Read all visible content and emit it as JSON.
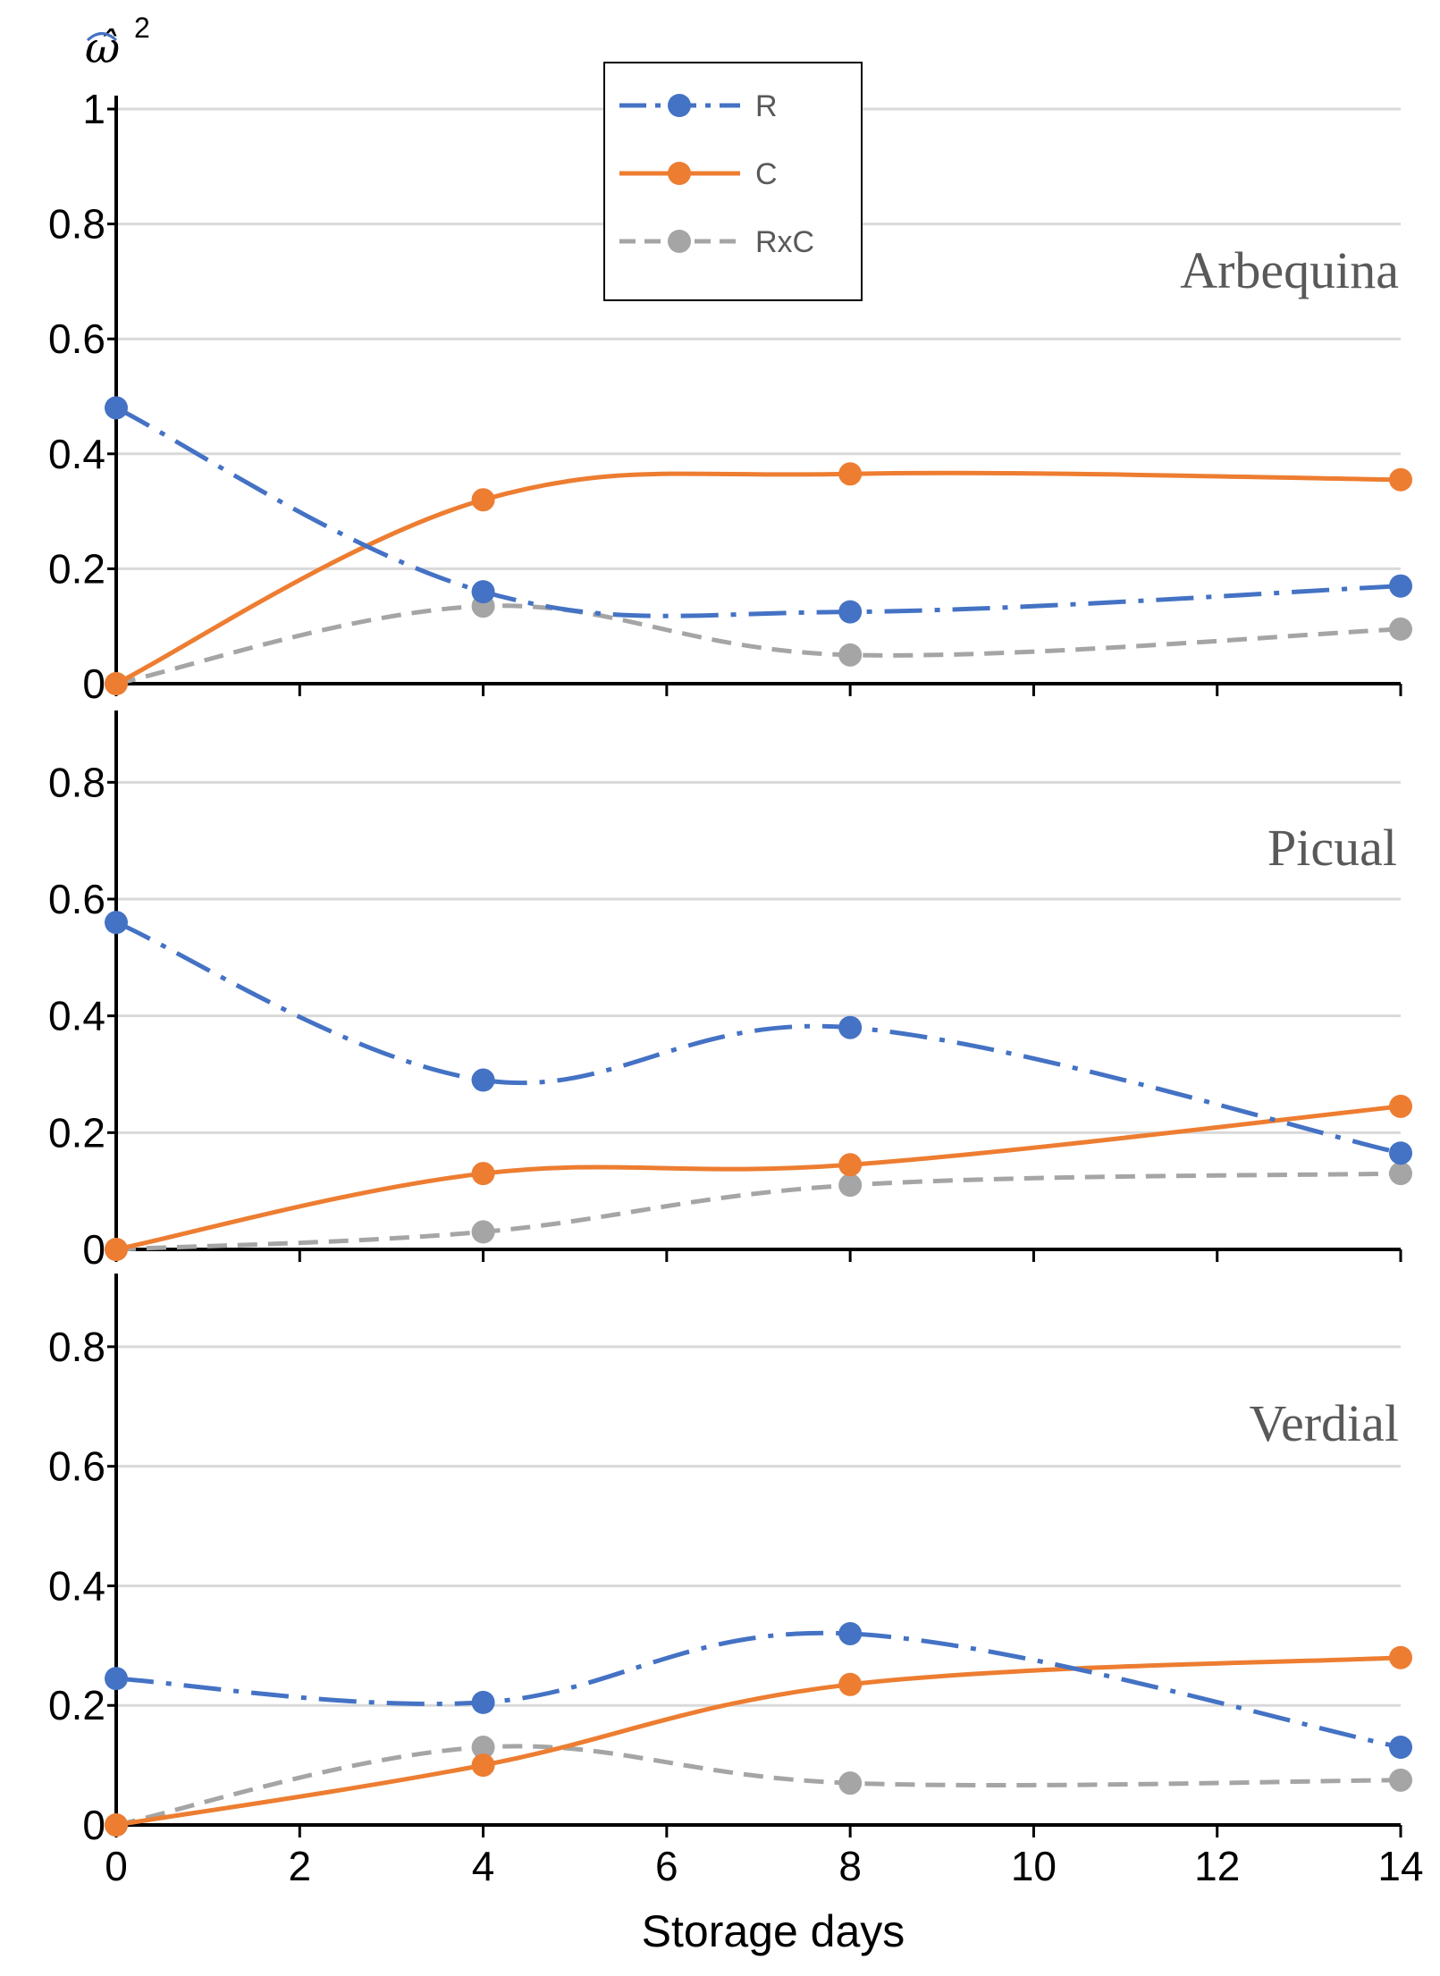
{
  "chart_data": {
    "type": "line",
    "ylabel": "ω̂",
    "ylabel_superscript": "2",
    "xlabel": "Storage days",
    "x_ticks": [
      "0",
      "2",
      "4",
      "6",
      "8",
      "10",
      "12",
      "14"
    ],
    "xlim": [
      0,
      14
    ],
    "x": [
      0,
      4,
      8,
      14
    ],
    "legend": {
      "position": "top-center",
      "entries": [
        {
          "name": "R",
          "color": "#4472C4",
          "style": "dash-dot"
        },
        {
          "name": "C",
          "color": "#ED7D31",
          "style": "solid"
        },
        {
          "name": "RxC",
          "color": "#A5A5A5",
          "style": "dashed"
        }
      ]
    },
    "panels": [
      {
        "title": "Arbequina",
        "ylim": [
          0,
          1
        ],
        "y_ticks": [
          "0",
          "0.2",
          "0.4",
          "0.6",
          "0.8",
          "1"
        ],
        "series": [
          {
            "name": "R",
            "values": [
              0.48,
              0.16,
              0.125,
              0.17
            ]
          },
          {
            "name": "C",
            "values": [
              0,
              0.32,
              0.365,
              0.355
            ]
          },
          {
            "name": "RxC",
            "values": [
              0,
              0.135,
              0.05,
              0.095
            ]
          }
        ]
      },
      {
        "title": "Picual",
        "ylim": [
          0,
          0.9
        ],
        "y_ticks": [
          "0",
          "0.2",
          "0.4",
          "0.6",
          "0.8"
        ],
        "series": [
          {
            "name": "R",
            "values": [
              0.56,
              0.29,
              0.38,
              0.165
            ]
          },
          {
            "name": "C",
            "values": [
              0,
              0.13,
              0.145,
              0.245
            ]
          },
          {
            "name": "RxC",
            "values": [
              0,
              0.03,
              0.11,
              0.13
            ]
          }
        ]
      },
      {
        "title": "Verdial",
        "ylim": [
          0,
          0.9
        ],
        "y_ticks": [
          "0",
          "0.2",
          "0.4",
          "0.6",
          "0.8"
        ],
        "series": [
          {
            "name": "R",
            "values": [
              0.245,
              0.205,
              0.32,
              0.13
            ]
          },
          {
            "name": "C",
            "values": [
              0,
              0.1,
              0.235,
              0.28
            ]
          },
          {
            "name": "RxC",
            "values": [
              0,
              0.13,
              0.07,
              0.075
            ]
          }
        ]
      }
    ]
  }
}
